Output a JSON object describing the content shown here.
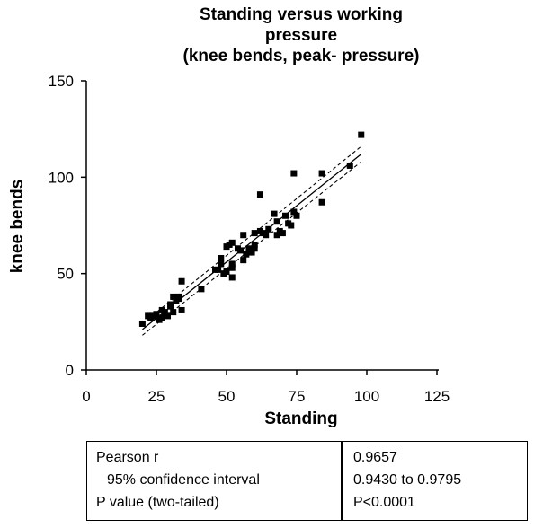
{
  "chart_data": {
    "type": "scatter",
    "title": [
      "Standing versus working",
      "pressure",
      "(knee bends, peak- pressure)"
    ],
    "xlabel": "Standing",
    "ylabel": "knee bends",
    "xlim": [
      0,
      125
    ],
    "ylim": [
      0,
      150
    ],
    "xticks": [
      0,
      25,
      50,
      75,
      100,
      125
    ],
    "yticks": [
      0,
      50,
      100,
      150
    ],
    "grid": false,
    "marker": "square",
    "marker_color": "#000000",
    "regression_line": {
      "x": [
        20,
        98
      ],
      "y": [
        21,
        112
      ]
    },
    "confidence_band_upper": {
      "x": [
        20,
        98
      ],
      "y": [
        24,
        116
      ]
    },
    "confidence_band_lower": {
      "x": [
        20,
        98
      ],
      "y": [
        18,
        108
      ]
    },
    "points": [
      [
        20,
        24
      ],
      [
        22,
        28
      ],
      [
        23,
        27
      ],
      [
        24,
        28
      ],
      [
        25,
        29
      ],
      [
        26,
        26
      ],
      [
        27,
        31
      ],
      [
        27,
        27
      ],
      [
        28,
        30
      ],
      [
        29,
        28
      ],
      [
        30,
        33
      ],
      [
        30,
        34
      ],
      [
        31,
        38
      ],
      [
        31,
        30
      ],
      [
        32,
        36
      ],
      [
        33,
        38
      ],
      [
        33,
        37
      ],
      [
        34,
        46
      ],
      [
        34,
        31
      ],
      [
        41,
        42
      ],
      [
        46,
        52
      ],
      [
        47,
        52
      ],
      [
        48,
        55
      ],
      [
        48,
        58
      ],
      [
        49,
        50
      ],
      [
        50,
        51
      ],
      [
        50,
        64
      ],
      [
        51,
        65
      ],
      [
        52,
        55
      ],
      [
        52,
        48
      ],
      [
        52,
        53
      ],
      [
        52,
        66
      ],
      [
        54,
        63
      ],
      [
        55,
        62
      ],
      [
        56,
        70
      ],
      [
        56,
        57
      ],
      [
        57,
        60
      ],
      [
        58,
        63
      ],
      [
        58,
        61
      ],
      [
        59,
        61
      ],
      [
        60,
        65
      ],
      [
        60,
        63
      ],
      [
        60,
        71
      ],
      [
        62,
        91
      ],
      [
        62,
        72
      ],
      [
        63,
        71
      ],
      [
        64,
        70
      ],
      [
        65,
        73
      ],
      [
        67,
        81
      ],
      [
        68,
        70
      ],
      [
        68,
        77
      ],
      [
        69,
        72
      ],
      [
        70,
        71
      ],
      [
        71,
        80
      ],
      [
        72,
        76
      ],
      [
        73,
        75
      ],
      [
        74,
        82
      ],
      [
        74,
        102
      ],
      [
        75,
        80
      ],
      [
        84,
        102
      ],
      [
        84,
        87
      ],
      [
        94,
        106
      ],
      [
        98,
        122
      ]
    ]
  },
  "stats": {
    "labels": [
      "Pearson r",
      "95% confidence interval",
      "P value (two-tailed)"
    ],
    "values": [
      "0.9657",
      "0.9430 to 0.9795",
      "P<0.0001"
    ]
  }
}
